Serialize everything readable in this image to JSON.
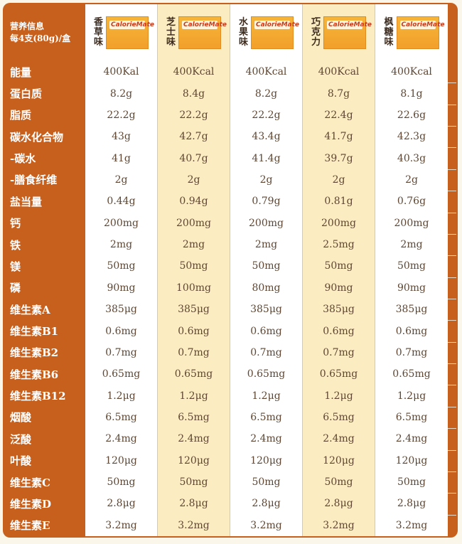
{
  "header": {
    "label_line1": "营养信息",
    "label_line2": "每4支(80g)/盒",
    "brand_text": "CalorieMate",
    "flavors": [
      {
        "name": [
          "香",
          "草",
          "味"
        ]
      },
      {
        "name": [
          "芝",
          "士",
          "味"
        ]
      },
      {
        "name": [
          "水",
          "果",
          "味"
        ]
      },
      {
        "name": [
          "巧",
          "克",
          "力"
        ]
      },
      {
        "name": [
          "枫",
          "糖",
          "味"
        ]
      }
    ]
  },
  "rows": [
    {
      "label": "能量",
      "values": [
        "400Kal",
        "400Kcal",
        "400Kcal",
        "400Kcal",
        "400Kcal"
      ]
    },
    {
      "label": "蛋白质",
      "values": [
        "8.2g",
        "8.4g",
        "8.2g",
        "8.7g",
        "8.1g"
      ]
    },
    {
      "label": "脂质",
      "values": [
        "22.2g",
        "22.2g",
        "22.2g",
        "22.4g",
        "22.6g"
      ]
    },
    {
      "label": "碳水化合物",
      "values": [
        "43g",
        "42.7g",
        "43.4g",
        "41.7g",
        "42.3g"
      ]
    },
    {
      "label": "-碳水",
      "values": [
        "41g",
        "40.7g",
        "41.4g",
        "39.7g",
        "40.3g"
      ]
    },
    {
      "label": "-膳食纤维",
      "values": [
        "2g",
        "2g",
        "2g",
        "2g",
        "2g"
      ]
    },
    {
      "label": "盐当量",
      "values": [
        "0.44g",
        "0.94g",
        "0.79g",
        "0.81g",
        "0.76g"
      ]
    },
    {
      "label": "钙",
      "values": [
        "200mg",
        "200mg",
        "200mg",
        "200mg",
        "200mg"
      ]
    },
    {
      "label": "铁",
      "values": [
        "2mg",
        "2mg",
        "2mg",
        "2.5mg",
        "2mg"
      ]
    },
    {
      "label": "镁",
      "values": [
        "50mg",
        "50mg",
        "50mg",
        "50mg",
        "50mg"
      ]
    },
    {
      "label": "磷",
      "values": [
        "90mg",
        "100mg",
        "80mg",
        "90mg",
        "90mg"
      ]
    },
    {
      "label": "维生素A",
      "values": [
        "385μg",
        "385μg",
        "385μg",
        "385μg",
        "385μg"
      ]
    },
    {
      "label": "维生素B1",
      "values": [
        "0.6mg",
        "0.6mg",
        "0.6mg",
        "0.6mg",
        "0.6mg"
      ]
    },
    {
      "label": "维生素B2",
      "values": [
        "0.7mg",
        "0.7mg",
        "0.7mg",
        "0.7mg",
        "0.7mg"
      ]
    },
    {
      "label": "维生素B6",
      "values": [
        "0.65mg",
        "0.65mg",
        "0.65mg",
        "0.65mg",
        "0.65mg"
      ]
    },
    {
      "label": "维生素B12",
      "values": [
        "1.2μg",
        "1.2μg",
        "1.2μg",
        "1.2μg",
        "1.2μg"
      ]
    },
    {
      "label": "烟酸",
      "values": [
        "6.5mg",
        "6.5mg",
        "6.5mg",
        "6.5mg",
        "6.5mg"
      ]
    },
    {
      "label": "泛酸",
      "values": [
        "2.4mg",
        "2.4mg",
        "2.4mg",
        "2.4mg",
        "2.4mg"
      ]
    },
    {
      "label": "叶酸",
      "values": [
        "120μg",
        "120μg",
        "120μg",
        "120μg",
        "120μg"
      ]
    },
    {
      "label": "维生素C",
      "values": [
        "50mg",
        "50mg",
        "50mg",
        "50mg",
        "50mg"
      ]
    },
    {
      "label": "维生素D",
      "values": [
        "2.8μg",
        "2.8μg",
        "2.8μg",
        "2.8μg",
        "2.8μg"
      ]
    },
    {
      "label": "维生素E",
      "values": [
        "3.2mg",
        "3.2mg",
        "3.2mg",
        "3.2mg",
        "3.2mg"
      ]
    }
  ]
}
